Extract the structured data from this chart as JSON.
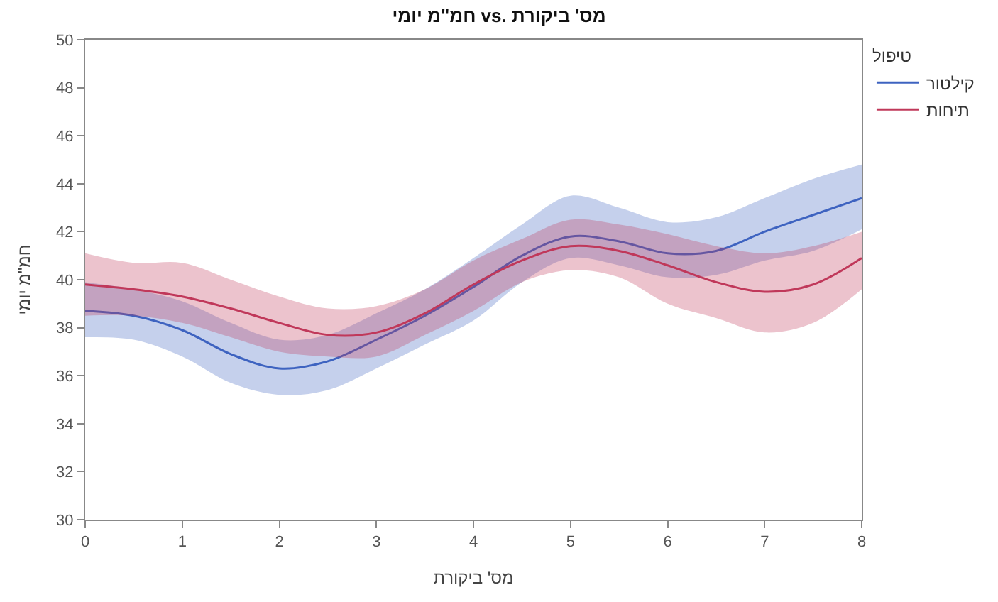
{
  "chart_data": {
    "type": "line",
    "title": "חמ\"מ יומי vs. מס' ביקורת",
    "xlabel": "מס' ביקורת",
    "ylabel": "חמ\"מ יומי",
    "legend_title": "טיפול",
    "legend": "top right",
    "marker": "none",
    "line_style": "solid",
    "x": [
      0,
      0.5,
      1,
      1.5,
      2,
      2.5,
      3,
      3.5,
      4,
      4.5,
      5,
      5.5,
      6,
      6.5,
      7,
      7.5,
      8
    ],
    "xlim": [
      0,
      8
    ],
    "xticks": [
      0,
      1,
      2,
      3,
      4,
      5,
      6,
      7,
      8
    ],
    "ylim": [
      30,
      50
    ],
    "yticks": [
      30,
      32,
      34,
      36,
      38,
      40,
      42,
      44,
      46,
      48,
      50
    ],
    "series": [
      {
        "name": "קילטור",
        "color": "#3e63c0",
        "values": [
          38.7,
          38.5,
          37.9,
          36.9,
          36.3,
          36.6,
          37.5,
          38.5,
          39.7,
          41.0,
          41.8,
          41.6,
          41.1,
          41.2,
          42.0,
          42.7,
          43.4
        ],
        "lower": [
          37.6,
          37.5,
          36.8,
          35.7,
          35.2,
          35.4,
          36.3,
          37.3,
          38.3,
          39.9,
          40.9,
          40.6,
          40.1,
          40.2,
          40.8,
          41.2,
          42.1
        ],
        "upper": [
          39.9,
          39.6,
          39.1,
          38.2,
          37.5,
          37.7,
          38.6,
          39.6,
          40.9,
          42.3,
          43.5,
          43.0,
          42.4,
          42.6,
          43.4,
          44.2,
          44.8
        ]
      },
      {
        "name": "תיחות",
        "color": "#c0385a",
        "values": [
          39.8,
          39.6,
          39.3,
          38.8,
          38.2,
          37.7,
          37.8,
          38.6,
          39.8,
          40.8,
          41.4,
          41.2,
          40.6,
          39.9,
          39.5,
          39.8,
          40.9
        ],
        "lower": [
          38.5,
          38.5,
          38.2,
          37.6,
          37.0,
          36.8,
          36.8,
          37.7,
          38.7,
          39.9,
          40.4,
          40.1,
          39.0,
          38.4,
          37.8,
          38.2,
          39.6
        ],
        "upper": [
          41.1,
          40.7,
          40.7,
          40.0,
          39.3,
          38.8,
          38.9,
          39.6,
          40.8,
          41.7,
          42.5,
          42.3,
          41.9,
          41.4,
          41.1,
          41.4,
          42.0
        ]
      }
    ]
  }
}
